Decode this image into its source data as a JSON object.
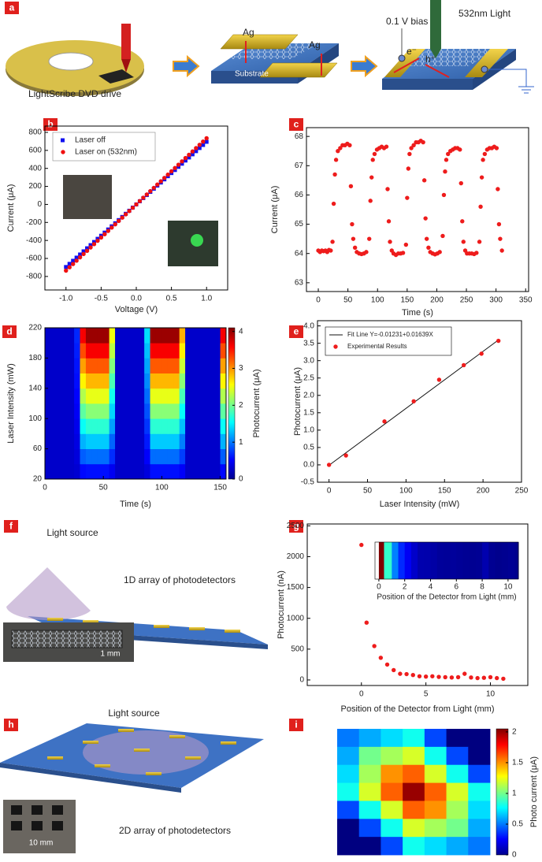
{
  "panel_labels": [
    "a",
    "b",
    "c",
    "d",
    "e",
    "f",
    "g",
    "h",
    "i"
  ],
  "illustrations": {
    "a": {
      "caption": "LightScribe DVD drive",
      "ag_left": "Ag",
      "ag_right": "Ag",
      "substrate": "Substrate",
      "bias": "0.1 V bias",
      "light": "532nm Light",
      "electron": "e⁻",
      "hole": "h⁺"
    },
    "f": {
      "source": "Light source",
      "array": "1D array of photodetectors",
      "scale": "1 mm"
    },
    "h": {
      "source": "Light source",
      "array": "2D array of photodetectors",
      "scale": "10 mm"
    }
  },
  "chart_data": [
    {
      "type": "scatter",
      "xlabel": "Voltage (V)",
      "ylabel": "Current (μA)",
      "xlim": [
        -1.3,
        1.3
      ],
      "ylim": [
        -950,
        870
      ],
      "xticks": [
        {
          "value": -1,
          "label": "-1.0"
        },
        -0.5,
        {
          "value": 0,
          "label": "0.0"
        },
        0.5,
        {
          "value": 1,
          "label": "1.0"
        }
      ],
      "yticks": [
        -800,
        -600,
        -400,
        -200,
        0,
        200,
        400,
        600,
        800
      ],
      "legend": "upper left",
      "x": [
        -1,
        -0.95,
        -0.9,
        -0.85,
        -0.8,
        -0.75,
        -0.7,
        -0.65,
        -0.6,
        -0.55,
        -0.5,
        -0.45,
        -0.4,
        -0.35,
        -0.3,
        -0.25,
        -0.2,
        -0.15,
        -0.1,
        -0.05,
        0,
        0.05,
        0.1,
        0.15,
        0.2,
        0.25,
        0.3,
        0.35,
        0.4,
        0.45,
        0.5,
        0.55,
        0.6,
        0.65,
        0.7,
        0.75,
        0.8,
        0.85,
        0.9,
        0.95,
        1
      ],
      "series": [
        {
          "name": "Laser off",
          "color": "#1010f0",
          "marker": "square",
          "values": [
            -695,
            -660,
            -626,
            -591,
            -556,
            -521,
            -487,
            -452,
            -417,
            -382,
            -348,
            -313,
            -278,
            -243,
            -209,
            -174,
            -139,
            -104,
            -70,
            -35,
            0,
            35,
            70,
            104,
            139,
            174,
            209,
            243,
            278,
            313,
            348,
            382,
            417,
            452,
            487,
            521,
            556,
            591,
            626,
            660,
            695
          ]
        },
        {
          "name": "Laser on (532nm)",
          "color": "#f01010",
          "marker": "circle",
          "values": [
            -735,
            -698,
            -662,
            -625,
            -588,
            -551,
            -515,
            -478,
            -441,
            -404,
            -368,
            -331,
            -294,
            -257,
            -221,
            -184,
            -147,
            -110,
            -74,
            -37,
            0,
            37,
            74,
            110,
            147,
            184,
            221,
            257,
            294,
            331,
            368,
            404,
            441,
            478,
            515,
            551,
            588,
            625,
            662,
            698,
            735
          ]
        }
      ]
    },
    {
      "type": "scatter",
      "xlabel": "Time (s)",
      "ylabel": "Current (μA)",
      "color": "#ee1c1c",
      "xlim": [
        -20,
        355
      ],
      "ylim": [
        62.7,
        68.3
      ],
      "xticks": [
        0,
        50,
        100,
        150,
        200,
        250,
        300,
        350
      ],
      "yticks": [
        63,
        64,
        65,
        66,
        67,
        68
      ],
      "x": [
        0,
        3,
        6,
        9,
        12,
        15,
        18,
        21,
        24,
        26,
        28,
        30,
        33,
        37,
        41,
        45,
        49,
        53,
        55,
        57,
        59,
        62,
        65,
        69,
        73,
        77,
        81,
        86,
        88,
        90,
        92,
        95,
        99,
        103,
        107,
        111,
        115,
        117,
        119,
        121,
        124,
        127,
        131,
        135,
        139,
        143,
        148,
        150,
        152,
        154,
        157,
        161,
        165,
        169,
        173,
        177,
        179,
        181,
        183,
        186,
        189,
        193,
        197,
        201,
        205,
        210,
        212,
        214,
        216,
        219,
        223,
        227,
        231,
        235,
        239,
        241,
        243,
        245,
        248,
        251,
        255,
        259,
        263,
        267,
        272,
        274,
        276,
        278,
        281,
        285,
        289,
        293,
        297,
        301,
        303,
        305,
        307,
        310
      ],
      "values": [
        64.1,
        64.05,
        64.1,
        64.08,
        64.1,
        64.05,
        64.12,
        64.1,
        64.4,
        65.7,
        66.7,
        67.2,
        67.5,
        67.6,
        67.7,
        67.7,
        67.75,
        67.7,
        66.3,
        65.0,
        64.5,
        64.2,
        64.05,
        64.0,
        63.98,
        64.0,
        64.05,
        64.5,
        65.8,
        66.6,
        67.2,
        67.4,
        67.55,
        67.6,
        67.65,
        67.6,
        67.65,
        66.2,
        65.1,
        64.4,
        64.1,
        64.0,
        63.95,
        64.0,
        64.0,
        64.02,
        64.3,
        65.9,
        66.9,
        67.4,
        67.6,
        67.7,
        67.8,
        67.8,
        67.85,
        67.8,
        66.5,
        65.2,
        64.5,
        64.2,
        64.05,
        64.0,
        63.97,
        64.0,
        64.05,
        64.6,
        66.0,
        66.8,
        67.2,
        67.4,
        67.5,
        67.55,
        67.6,
        67.6,
        67.55,
        66.4,
        65.1,
        64.4,
        64.1,
        64.0,
        64.0,
        64.0,
        63.98,
        64.02,
        64.4,
        65.6,
        66.6,
        67.2,
        67.4,
        67.55,
        67.6,
        67.6,
        67.65,
        67.6,
        66.2,
        65.0,
        64.5,
        64.1
      ]
    },
    {
      "type": "heatmap",
      "xlabel": "Time (s)",
      "ylabel": "Laser Intensity (mW)",
      "colormap": "jet",
      "xlim": [
        0,
        155
      ],
      "ylim": [
        20,
        220
      ],
      "xticks": [
        0,
        50,
        100,
        150
      ],
      "yticks": [
        20,
        60,
        100,
        140,
        180,
        220
      ],
      "xbins": [
        0,
        5,
        10,
        15,
        20,
        25,
        30,
        35,
        40,
        45,
        50,
        55,
        60,
        65,
        70,
        75,
        80,
        85,
        90,
        95,
        100,
        105,
        110,
        115,
        120,
        125,
        130,
        135,
        140,
        145,
        150,
        155
      ],
      "ybins": [
        20,
        40,
        60,
        80,
        100,
        120,
        140,
        160,
        180,
        200,
        220
      ],
      "z": [
        [
          0.3,
          0.3,
          0.3,
          0.3,
          0.3,
          0.33,
          0.54,
          0.57,
          0.57,
          0.57,
          0.57,
          0.46,
          0.3,
          0.3,
          0.3,
          0.3,
          0.3,
          0.38,
          0.57,
          0.57,
          0.57,
          0.57,
          0.57,
          0.49,
          0.3,
          0.3,
          0.3,
          0.3,
          0.3,
          0.3,
          0.54
        ],
        [
          0.3,
          0.3,
          0.3,
          0.3,
          0.3,
          0.37,
          0.89,
          0.95,
          0.95,
          0.95,
          0.95,
          0.69,
          0.3,
          0.3,
          0.3,
          0.3,
          0.3,
          0.5,
          0.95,
          0.95,
          0.95,
          0.95,
          0.95,
          0.76,
          0.3,
          0.3,
          0.3,
          0.3,
          0.3,
          0.3,
          0.89
        ],
        [
          0.3,
          0.3,
          0.3,
          0.3,
          0.3,
          0.4,
          1.23,
          1.33,
          1.33,
          1.33,
          1.33,
          0.92,
          0.3,
          0.3,
          0.3,
          0.3,
          0.3,
          0.61,
          1.33,
          1.33,
          1.33,
          1.33,
          1.33,
          1.02,
          0.3,
          0.3,
          0.3,
          0.3,
          0.3,
          0.3,
          1.23
        ],
        [
          0.3,
          0.3,
          0.3,
          0.3,
          0.3,
          0.44,
          1.57,
          1.71,
          1.71,
          1.71,
          1.71,
          1.15,
          0.3,
          0.3,
          0.3,
          0.3,
          0.3,
          0.72,
          1.71,
          1.71,
          1.71,
          1.71,
          1.71,
          1.29,
          0.3,
          0.3,
          0.3,
          0.3,
          0.3,
          0.3,
          1.57
        ],
        [
          0.3,
          0.3,
          0.3,
          0.3,
          0.3,
          0.48,
          1.91,
          2.09,
          2.09,
          2.09,
          2.09,
          1.37,
          0.3,
          0.3,
          0.3,
          0.3,
          0.3,
          0.84,
          2.09,
          2.09,
          2.09,
          2.09,
          2.09,
          1.55,
          0.3,
          0.3,
          0.3,
          0.3,
          0.3,
          0.3,
          1.91
        ],
        [
          0.3,
          0.3,
          0.3,
          0.3,
          0.3,
          0.52,
          2.25,
          2.47,
          2.47,
          2.47,
          2.47,
          1.6,
          0.3,
          0.3,
          0.3,
          0.3,
          0.3,
          0.95,
          2.47,
          2.47,
          2.47,
          2.47,
          2.47,
          1.82,
          0.3,
          0.3,
          0.3,
          0.3,
          0.3,
          0.3,
          2.25
        ],
        [
          0.3,
          0.3,
          0.3,
          0.3,
          0.3,
          0.56,
          2.6,
          2.85,
          2.85,
          2.85,
          2.85,
          1.83,
          0.3,
          0.3,
          0.3,
          0.3,
          0.3,
          1.07,
          2.85,
          2.85,
          2.85,
          2.85,
          2.85,
          2.09,
          0.3,
          0.3,
          0.3,
          0.3,
          0.3,
          0.3,
          2.6
        ],
        [
          0.3,
          0.3,
          0.3,
          0.3,
          0.3,
          0.59,
          2.94,
          3.23,
          3.23,
          3.23,
          3.23,
          2.06,
          0.3,
          0.3,
          0.3,
          0.3,
          0.3,
          1.18,
          3.23,
          3.23,
          3.23,
          3.23,
          3.23,
          2.35,
          0.3,
          0.3,
          0.3,
          0.3,
          0.3,
          0.3,
          2.94
        ],
        [
          0.3,
          0.3,
          0.3,
          0.3,
          0.3,
          0.63,
          3.28,
          3.61,
          3.61,
          3.61,
          3.61,
          2.29,
          0.3,
          0.3,
          0.3,
          0.3,
          0.3,
          1.29,
          3.61,
          3.61,
          3.61,
          3.61,
          3.61,
          2.62,
          0.3,
          0.3,
          0.3,
          0.3,
          0.3,
          0.3,
          3.28
        ],
        [
          0.3,
          0.3,
          0.3,
          0.3,
          0.3,
          0.67,
          3.62,
          3.99,
          3.99,
          3.99,
          3.99,
          2.51,
          0.3,
          0.3,
          0.3,
          0.3,
          0.3,
          1.41,
          3.99,
          3.99,
          3.99,
          3.99,
          3.99,
          2.88,
          0.3,
          0.3,
          0.3,
          0.3,
          0.3,
          0.3,
          3.62
        ]
      ],
      "colorbar": {
        "label": "Photocurrent (μA)",
        "clim": [
          0,
          4.1
        ],
        "ticks": [
          0,
          1,
          2,
          3,
          4
        ]
      }
    },
    {
      "type": "scatter",
      "xlabel": "Laser Intensity (mW)",
      "ylabel": "Photocurrent (μA)",
      "xlim": [
        -15,
        250
      ],
      "ylim": [
        -0.5,
        4.15
      ],
      "xticks": [
        0,
        50,
        100,
        150,
        200,
        250
      ],
      "yticks": [
        -0.5,
        {
          "value": 0,
          "label": "0.0"
        },
        0.5,
        {
          "value": 1,
          "label": "1.0"
        },
        1.5,
        {
          "value": 2,
          "label": "2.0"
        },
        2.5,
        {
          "value": 3,
          "label": "3.0"
        },
        3.5,
        {
          "value": 4,
          "label": "4.0"
        }
      ],
      "legend": "upper left",
      "series": [
        {
          "name": "Fit Line Y=-0.01231+0.01639X",
          "color": "#111111",
          "kind": "line",
          "x": [
            0,
            220
          ],
          "values": [
            -0.01231,
            3.5935
          ]
        },
        {
          "name": "Experimental Results",
          "color": "#ee1c1c",
          "marker": "circle",
          "x": [
            0,
            22,
            72,
            110,
            143,
            175,
            198,
            220
          ],
          "values": [
            0,
            0.27,
            1.25,
            1.83,
            2.45,
            2.87,
            3.2,
            3.57
          ]
        }
      ]
    },
    {
      "type": "scatter",
      "xlabel": "Position of the Detector from Light (mm)",
      "ylabel": "Photocurrent (nA)",
      "color": "#ee1c1c",
      "xlim": [
        -4.2,
        12.9
      ],
      "ylim": [
        -90,
        2530
      ],
      "xticks": [
        0,
        5,
        10
      ],
      "yticks": [
        0,
        500,
        1000,
        1500,
        2000,
        2500
      ],
      "x": [
        0,
        0.4,
        1,
        1.5,
        2,
        2.5,
        3,
        3.5,
        4,
        4.5,
        5,
        5.5,
        6,
        6.5,
        7,
        7.5,
        8,
        8.5,
        9,
        9.5,
        10,
        10.5,
        11
      ],
      "values": [
        2190,
        930,
        550,
        360,
        250,
        160,
        100,
        95,
        80,
        60,
        55,
        60,
        50,
        45,
        40,
        45,
        100,
        40,
        30,
        35,
        45,
        30,
        20
      ],
      "inset": {
        "xlabel": "Position of the Detector from Light (mm)",
        "xlim": [
          -0.3,
          10.8
        ],
        "xticks": [
          0,
          2,
          4,
          6,
          8,
          10
        ],
        "colormap": "jet"
      }
    },
    {
      "type": "heatmap",
      "colormap": "jet",
      "z": [
        [
          0.5,
          0.6,
          0.7,
          0.8,
          0.4,
          0,
          0
        ],
        [
          0.6,
          1.0,
          1.1,
          1.2,
          0.8,
          0.4,
          0
        ],
        [
          0.7,
          1.1,
          1.5,
          1.6,
          1.2,
          0.8,
          0.4
        ],
        [
          0.8,
          1.2,
          1.6,
          2.0,
          1.6,
          1.2,
          0.8
        ],
        [
          0.4,
          0.8,
          1.2,
          1.6,
          1.5,
          1.1,
          0.7
        ],
        [
          0,
          0.4,
          0.8,
          1.2,
          1.1,
          1.0,
          0.6
        ],
        [
          0,
          0,
          0.4,
          0.8,
          0.7,
          0.6,
          0.5
        ]
      ],
      "colorbar": {
        "label": "Photo  current (μA)",
        "clim": [
          0,
          2.05
        ],
        "ticks": [
          0,
          0.5,
          1,
          1.5,
          2
        ]
      }
    }
  ]
}
